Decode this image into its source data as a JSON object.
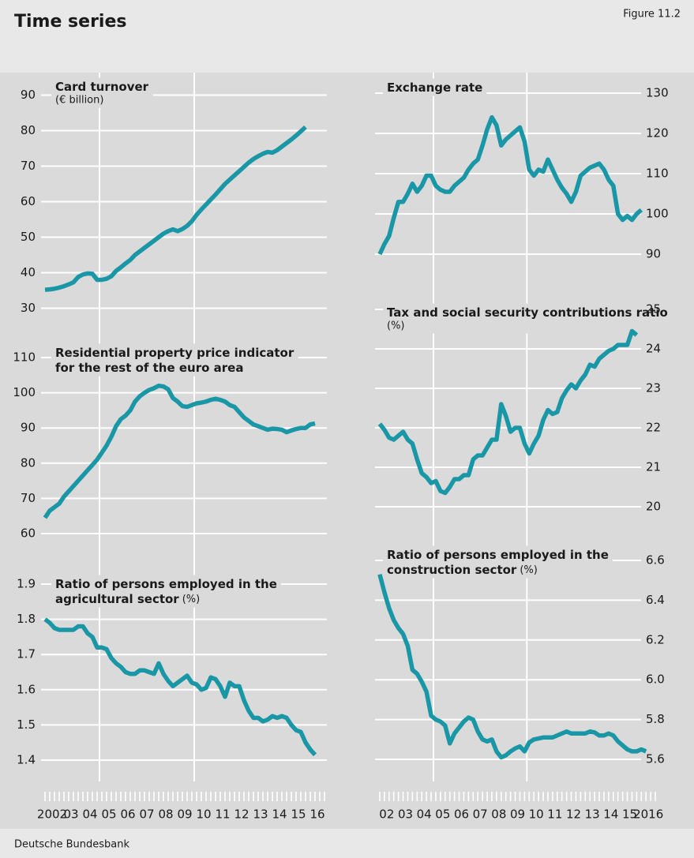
{
  "title": "Time series",
  "figure": "Figure 11.2",
  "source": "Deutsche Bundesbank",
  "chart_data": [
    {
      "type": "line",
      "title": [
        "Card turnover"
      ],
      "unit": "(€ billion)",
      "unit_inline": false,
      "axis_side": "left",
      "color": "#1a97a6",
      "xlim": [
        2002,
        2017
      ],
      "ylim": [
        25,
        95
      ],
      "yticks": [
        30,
        40,
        50,
        60,
        70,
        80,
        90
      ],
      "grid": true,
      "x": [
        2002.125,
        2002.375,
        2002.625,
        2002.875,
        2003.125,
        2003.375,
        2003.625,
        2003.875,
        2004.125,
        2004.375,
        2004.625,
        2004.875,
        2005.125,
        2005.375,
        2005.625,
        2005.875,
        2006.125,
        2006.375,
        2006.625,
        2006.875,
        2007.125,
        2007.375,
        2007.625,
        2007.875,
        2008.125,
        2008.375,
        2008.625,
        2008.875,
        2009.125,
        2009.375,
        2009.625,
        2009.875,
        2010.125,
        2010.375,
        2010.625,
        2010.875,
        2011.125,
        2011.375,
        2011.625,
        2011.875,
        2012.125,
        2012.375,
        2012.625,
        2012.875,
        2013.125,
        2013.375,
        2013.625,
        2013.875,
        2014.125,
        2014.375,
        2014.625,
        2014.875,
        2015.125,
        2015.375,
        2015.625,
        2015.875
      ],
      "values": [
        35.2,
        35.3,
        35.5,
        35.8,
        36.2,
        36.7,
        37.3,
        38.8,
        39.5,
        39.8,
        39.7,
        38.0,
        38.0,
        38.3,
        39.0,
        40.5,
        41.5,
        42.6,
        43.6,
        45.0,
        46.0,
        47.0,
        48.0,
        49.0,
        50.0,
        51.0,
        51.7,
        52.2,
        51.7,
        52.3,
        53.2,
        54.5,
        56.3,
        57.8,
        59.2,
        60.6,
        62.0,
        63.5,
        65.0,
        66.2,
        67.4,
        68.6,
        69.8,
        71.0,
        72.0,
        72.8,
        73.5,
        74.0,
        73.8,
        74.5,
        75.5,
        76.5,
        77.5,
        78.6,
        79.8,
        81.0
      ]
    },
    {
      "type": "line",
      "title": [
        "Exchange rate"
      ],
      "axis_side": "right",
      "color": "#1a97a6",
      "xlim": [
        2002,
        2017
      ],
      "ylim": [
        85,
        135
      ],
      "yticks": [
        90,
        100,
        110,
        120,
        130
      ],
      "grid": true,
      "x": [
        2002.125,
        2002.375,
        2002.625,
        2002.875,
        2003.125,
        2003.375,
        2003.625,
        2003.875,
        2004.125,
        2004.375,
        2004.625,
        2004.875,
        2005.125,
        2005.375,
        2005.625,
        2005.875,
        2006.125,
        2006.375,
        2006.625,
        2006.875,
        2007.125,
        2007.375,
        2007.625,
        2007.875,
        2008.125,
        2008.375,
        2008.625,
        2008.875,
        2009.125,
        2009.375,
        2009.625,
        2009.875,
        2010.125,
        2010.375,
        2010.625,
        2010.875,
        2011.125,
        2011.375,
        2011.625,
        2011.875,
        2012.125,
        2012.375,
        2012.625,
        2012.875,
        2013.125,
        2013.375,
        2013.625,
        2013.875,
        2014.125,
        2014.375,
        2014.625,
        2014.875,
        2015.125,
        2015.375,
        2015.625,
        2015.875,
        2016.125
      ],
      "values": [
        90,
        92.5,
        94.5,
        99,
        103,
        103,
        105,
        107.5,
        105.5,
        107,
        109.5,
        109.5,
        107,
        106,
        105.5,
        105.5,
        107,
        108,
        109,
        111,
        112.5,
        113.5,
        117,
        121,
        124,
        122,
        117,
        118.5,
        119.5,
        120.5,
        121.5,
        118,
        111,
        109.5,
        111,
        110.5,
        113.5,
        111,
        108.5,
        106.5,
        105,
        103,
        105.5,
        109.5,
        110.5,
        111.5,
        112,
        112.5,
        111,
        108.5,
        107,
        100,
        98.5,
        99.5,
        98.5,
        100,
        101
      ]
    },
    {
      "type": "line",
      "title": [
        "Residential property price indicator",
        "for the rest of the euro area"
      ],
      "axis_side": "left",
      "color": "#1a97a6",
      "xlim": [
        2002,
        2017
      ],
      "ylim": [
        55,
        115
      ],
      "yticks": [
        60,
        70,
        80,
        90,
        100,
        110
      ],
      "grid": true,
      "x": [
        2002.125,
        2002.375,
        2002.625,
        2002.875,
        2003.125,
        2003.375,
        2003.625,
        2003.875,
        2004.125,
        2004.375,
        2004.625,
        2004.875,
        2005.125,
        2005.375,
        2005.625,
        2005.875,
        2006.125,
        2006.375,
        2006.625,
        2006.875,
        2007.125,
        2007.375,
        2007.625,
        2007.875,
        2008.125,
        2008.375,
        2008.625,
        2008.875,
        2009.125,
        2009.375,
        2009.625,
        2009.875,
        2010.125,
        2010.375,
        2010.625,
        2010.875,
        2011.125,
        2011.375,
        2011.625,
        2011.875,
        2012.125,
        2012.375,
        2012.625,
        2012.875,
        2013.125,
        2013.375,
        2013.625,
        2013.875,
        2014.125,
        2014.375,
        2014.625,
        2014.875,
        2015.125,
        2015.375,
        2015.625,
        2015.875,
        2016.125,
        2016.375
      ],
      "values": [
        64.5,
        66.5,
        67.5,
        68.5,
        70.5,
        72,
        73.5,
        75,
        76.5,
        78,
        79.5,
        81,
        83,
        85,
        87.5,
        90.5,
        92.5,
        93.5,
        95,
        97.5,
        99,
        100,
        100.8,
        101.3,
        102,
        101.8,
        101,
        98.5,
        97.5,
        96.2,
        96,
        96.5,
        97,
        97.2,
        97.5,
        98,
        98.3,
        98,
        97.5,
        96.5,
        96,
        94.5,
        93,
        92,
        91,
        90.5,
        90,
        89.5,
        89.8,
        89.7,
        89.5,
        88.8,
        89.3,
        89.7,
        90,
        90,
        91,
        91.3
      ]
    },
    {
      "type": "line",
      "title": [
        "Tax and social security contributions ratio"
      ],
      "unit": "(%)",
      "unit_inline": false,
      "axis_side": "right",
      "color": "#1a97a6",
      "xlim": [
        2002,
        2017
      ],
      "ylim": [
        19.5,
        25.5
      ],
      "yticks": [
        20,
        21,
        22,
        23,
        24,
        25
      ],
      "grid": true,
      "x": [
        2002.125,
        2002.375,
        2002.625,
        2002.875,
        2003.125,
        2003.375,
        2003.625,
        2003.875,
        2004.125,
        2004.375,
        2004.625,
        2004.875,
        2005.125,
        2005.375,
        2005.625,
        2005.875,
        2006.125,
        2006.375,
        2006.625,
        2006.875,
        2007.125,
        2007.375,
        2007.625,
        2007.875,
        2008.125,
        2008.375,
        2008.625,
        2008.875,
        2009.125,
        2009.375,
        2009.625,
        2009.875,
        2010.125,
        2010.375,
        2010.625,
        2010.875,
        2011.125,
        2011.375,
        2011.625,
        2011.875,
        2012.125,
        2012.375,
        2012.625,
        2012.875,
        2013.125,
        2013.375,
        2013.625,
        2013.875,
        2014.125,
        2014.375,
        2014.625,
        2014.875,
        2015.125,
        2015.375,
        2015.625,
        2015.875
      ],
      "values": [
        22.1,
        21.95,
        21.75,
        21.7,
        21.8,
        21.9,
        21.7,
        21.6,
        21.2,
        20.85,
        20.75,
        20.6,
        20.65,
        20.4,
        20.35,
        20.5,
        20.7,
        20.7,
        20.8,
        20.8,
        21.2,
        21.3,
        21.3,
        21.5,
        21.7,
        21.7,
        22.6,
        22.3,
        21.9,
        22.0,
        22.0,
        21.6,
        21.35,
        21.6,
        21.8,
        22.2,
        22.45,
        22.35,
        22.4,
        22.75,
        22.95,
        23.1,
        23.0,
        23.2,
        23.35,
        23.6,
        23.55,
        23.75,
        23.85,
        23.95,
        24.0,
        24.1,
        24.1,
        24.1,
        24.45,
        24.35
      ]
    },
    {
      "type": "line",
      "title": [
        "Ratio of persons employed in the",
        "agricultural sector"
      ],
      "unit": "(%)",
      "unit_inline": true,
      "axis_side": "left",
      "color": "#1a97a6",
      "xlim": [
        2002,
        2017
      ],
      "ylim": [
        1.35,
        1.95
      ],
      "yticks": [
        1.4,
        1.5,
        1.6,
        1.7,
        1.8,
        1.9
      ],
      "grid": true,
      "xgrid": [
        2005,
        2010
      ],
      "xticks": [
        {
          "value": 2002.5,
          "label": "2002"
        },
        {
          "value": 2003.5,
          "label": "03"
        },
        {
          "value": 2004.5,
          "label": "04"
        },
        {
          "value": 2005.5,
          "label": "05"
        },
        {
          "value": 2006.5,
          "label": "06"
        },
        {
          "value": 2007.5,
          "label": "07"
        },
        {
          "value": 2008.5,
          "label": "08"
        },
        {
          "value": 2009.5,
          "label": "09"
        },
        {
          "value": 2010.5,
          "label": "10"
        },
        {
          "value": 2011.5,
          "label": "11"
        },
        {
          "value": 2012.5,
          "label": "12"
        },
        {
          "value": 2013.5,
          "label": "13"
        },
        {
          "value": 2014.5,
          "label": "14"
        },
        {
          "value": 2015.5,
          "label": "15"
        },
        {
          "value": 2016.5,
          "label": "16"
        }
      ],
      "x": [
        2002.125,
        2002.375,
        2002.625,
        2002.875,
        2003.125,
        2003.375,
        2003.625,
        2003.875,
        2004.125,
        2004.375,
        2004.625,
        2004.875,
        2005.125,
        2005.375,
        2005.625,
        2005.875,
        2006.125,
        2006.375,
        2006.625,
        2006.875,
        2007.125,
        2007.375,
        2007.625,
        2007.875,
        2008.125,
        2008.375,
        2008.625,
        2008.875,
        2009.125,
        2009.375,
        2009.625,
        2009.875,
        2010.125,
        2010.375,
        2010.625,
        2010.875,
        2011.125,
        2011.375,
        2011.625,
        2011.875,
        2012.125,
        2012.375,
        2012.625,
        2012.875,
        2013.125,
        2013.375,
        2013.625,
        2013.875,
        2014.125,
        2014.375,
        2014.625,
        2014.875,
        2015.125,
        2015.375,
        2015.625,
        2015.875,
        2016.125,
        2016.375
      ],
      "values": [
        1.8,
        1.79,
        1.775,
        1.77,
        1.77,
        1.77,
        1.77,
        1.78,
        1.78,
        1.76,
        1.75,
        1.72,
        1.72,
        1.715,
        1.69,
        1.675,
        1.665,
        1.65,
        1.645,
        1.645,
        1.655,
        1.655,
        1.65,
        1.645,
        1.675,
        1.645,
        1.625,
        1.61,
        1.62,
        1.63,
        1.64,
        1.62,
        1.615,
        1.6,
        1.605,
        1.635,
        1.63,
        1.61,
        1.58,
        1.62,
        1.61,
        1.61,
        1.57,
        1.54,
        1.52,
        1.52,
        1.51,
        1.515,
        1.525,
        1.52,
        1.525,
        1.52,
        1.5,
        1.485,
        1.48,
        1.45,
        1.43,
        1.415
      ]
    },
    {
      "type": "line",
      "title": [
        "Ratio of persons employed in the",
        "construction sector"
      ],
      "unit": "(%)",
      "unit_inline": true,
      "axis_side": "right",
      "color": "#1a97a6",
      "xlim": [
        2002,
        2017
      ],
      "ylim": [
        5.5,
        6.7
      ],
      "yticks": [
        5.6,
        5.8,
        {
          "value": 6,
          "label": "6.0"
        },
        6.2,
        6.4,
        6.6
      ],
      "grid": true,
      "xgrid": [
        2005,
        2010
      ],
      "xticks": [
        {
          "value": 2002.5,
          "label": "02"
        },
        {
          "value": 2003.5,
          "label": "03"
        },
        {
          "value": 2004.5,
          "label": "04"
        },
        {
          "value": 2005.5,
          "label": "05"
        },
        {
          "value": 2006.5,
          "label": "06"
        },
        {
          "value": 2007.5,
          "label": "07"
        },
        {
          "value": 2008.5,
          "label": "08"
        },
        {
          "value": 2009.5,
          "label": "09"
        },
        {
          "value": 2010.5,
          "label": "10"
        },
        {
          "value": 2011.5,
          "label": "11"
        },
        {
          "value": 2012.5,
          "label": "12"
        },
        {
          "value": 2013.5,
          "label": "13"
        },
        {
          "value": 2014.5,
          "label": "14"
        },
        {
          "value": 2015.5,
          "label": "15"
        },
        {
          "value": 2016.5,
          "label": "2016"
        }
      ],
      "x": [
        2002.125,
        2002.375,
        2002.625,
        2002.875,
        2003.125,
        2003.375,
        2003.625,
        2003.875,
        2004.125,
        2004.375,
        2004.625,
        2004.875,
        2005.125,
        2005.375,
        2005.625,
        2005.875,
        2006.125,
        2006.375,
        2006.625,
        2006.875,
        2007.125,
        2007.375,
        2007.625,
        2007.875,
        2008.125,
        2008.375,
        2008.625,
        2008.875,
        2009.125,
        2009.375,
        2009.625,
        2009.875,
        2010.125,
        2010.375,
        2010.625,
        2010.875,
        2011.125,
        2011.375,
        2011.625,
        2011.875,
        2012.125,
        2012.375,
        2012.625,
        2012.875,
        2013.125,
        2013.375,
        2013.625,
        2013.875,
        2014.125,
        2014.375,
        2014.625,
        2014.875,
        2015.125,
        2015.375,
        2015.625,
        2015.875,
        2016.125,
        2016.375
      ],
      "values": [
        6.53,
        6.44,
        6.36,
        6.3,
        6.26,
        6.23,
        6.17,
        6.05,
        6.03,
        5.99,
        5.94,
        5.82,
        5.8,
        5.79,
        5.77,
        5.68,
        5.73,
        5.76,
        5.79,
        5.81,
        5.8,
        5.74,
        5.7,
        5.69,
        5.7,
        5.64,
        5.61,
        5.62,
        5.64,
        5.655,
        5.665,
        5.64,
        5.685,
        5.7,
        5.705,
        5.71,
        5.71,
        5.71,
        5.72,
        5.73,
        5.74,
        5.73,
        5.73,
        5.73,
        5.73,
        5.74,
        5.735,
        5.72,
        5.72,
        5.73,
        5.72,
        5.69,
        5.67,
        5.65,
        5.64,
        5.64,
        5.65,
        5.64
      ]
    }
  ]
}
